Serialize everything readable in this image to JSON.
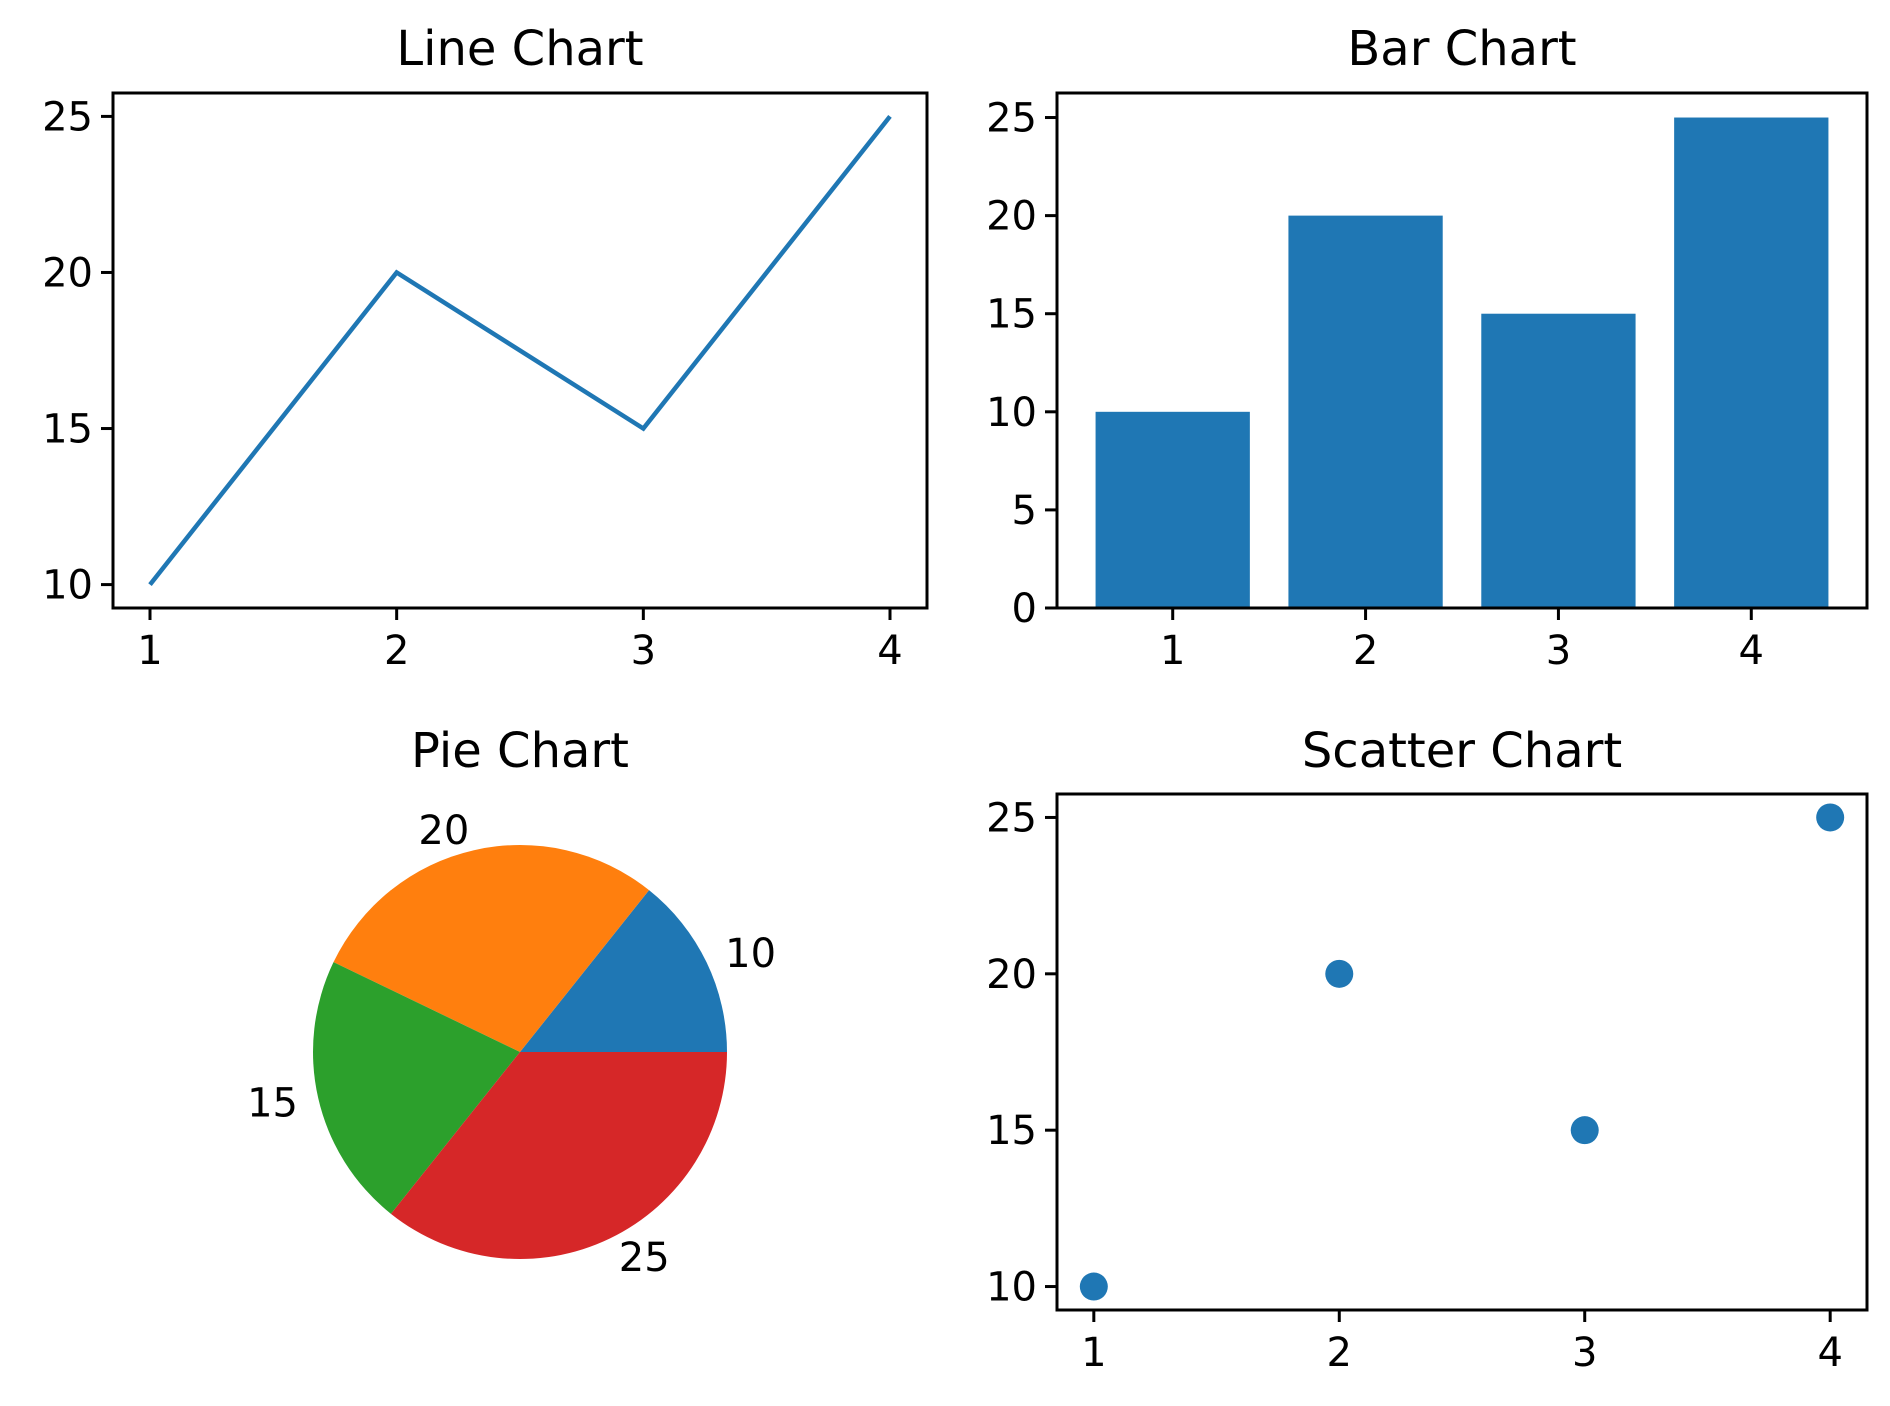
{
  "chart_data": [
    {
      "type": "line",
      "title": "Line Chart",
      "x": [
        1,
        2,
        3,
        4
      ],
      "values": [
        10,
        20,
        15,
        25
      ],
      "xticks": [
        1,
        2,
        3,
        4
      ],
      "yticks": [
        10,
        15,
        20,
        25
      ],
      "xlim": [
        0.85,
        4.15
      ],
      "ylim": [
        9.25,
        25.75
      ],
      "color": "#1f77b4",
      "grid": false
    },
    {
      "type": "bar",
      "title": "Bar Chart",
      "categories": [
        "1",
        "2",
        "3",
        "4"
      ],
      "values": [
        10,
        20,
        15,
        25
      ],
      "yticks": [
        0,
        5,
        10,
        15,
        20,
        25
      ],
      "ylim": [
        0,
        26.25
      ],
      "color": "#1f77b4",
      "grid": false
    },
    {
      "type": "pie",
      "title": "Pie Chart",
      "labels": [
        "10",
        "20",
        "15",
        "25"
      ],
      "values": [
        10,
        20,
        15,
        25
      ],
      "colors": [
        "#1f77b4",
        "#ff7f0e",
        "#2ca02c",
        "#d62728"
      ]
    },
    {
      "type": "scatter",
      "title": "Scatter Chart",
      "x": [
        1,
        2,
        3,
        4
      ],
      "values": [
        10,
        20,
        15,
        25
      ],
      "xticks": [
        1,
        2,
        3,
        4
      ],
      "yticks": [
        10,
        15,
        20,
        25
      ],
      "xlim": [
        0.85,
        4.15
      ],
      "ylim": [
        9.25,
        25.75
      ],
      "color": "#1f77b4",
      "grid": false
    }
  ]
}
